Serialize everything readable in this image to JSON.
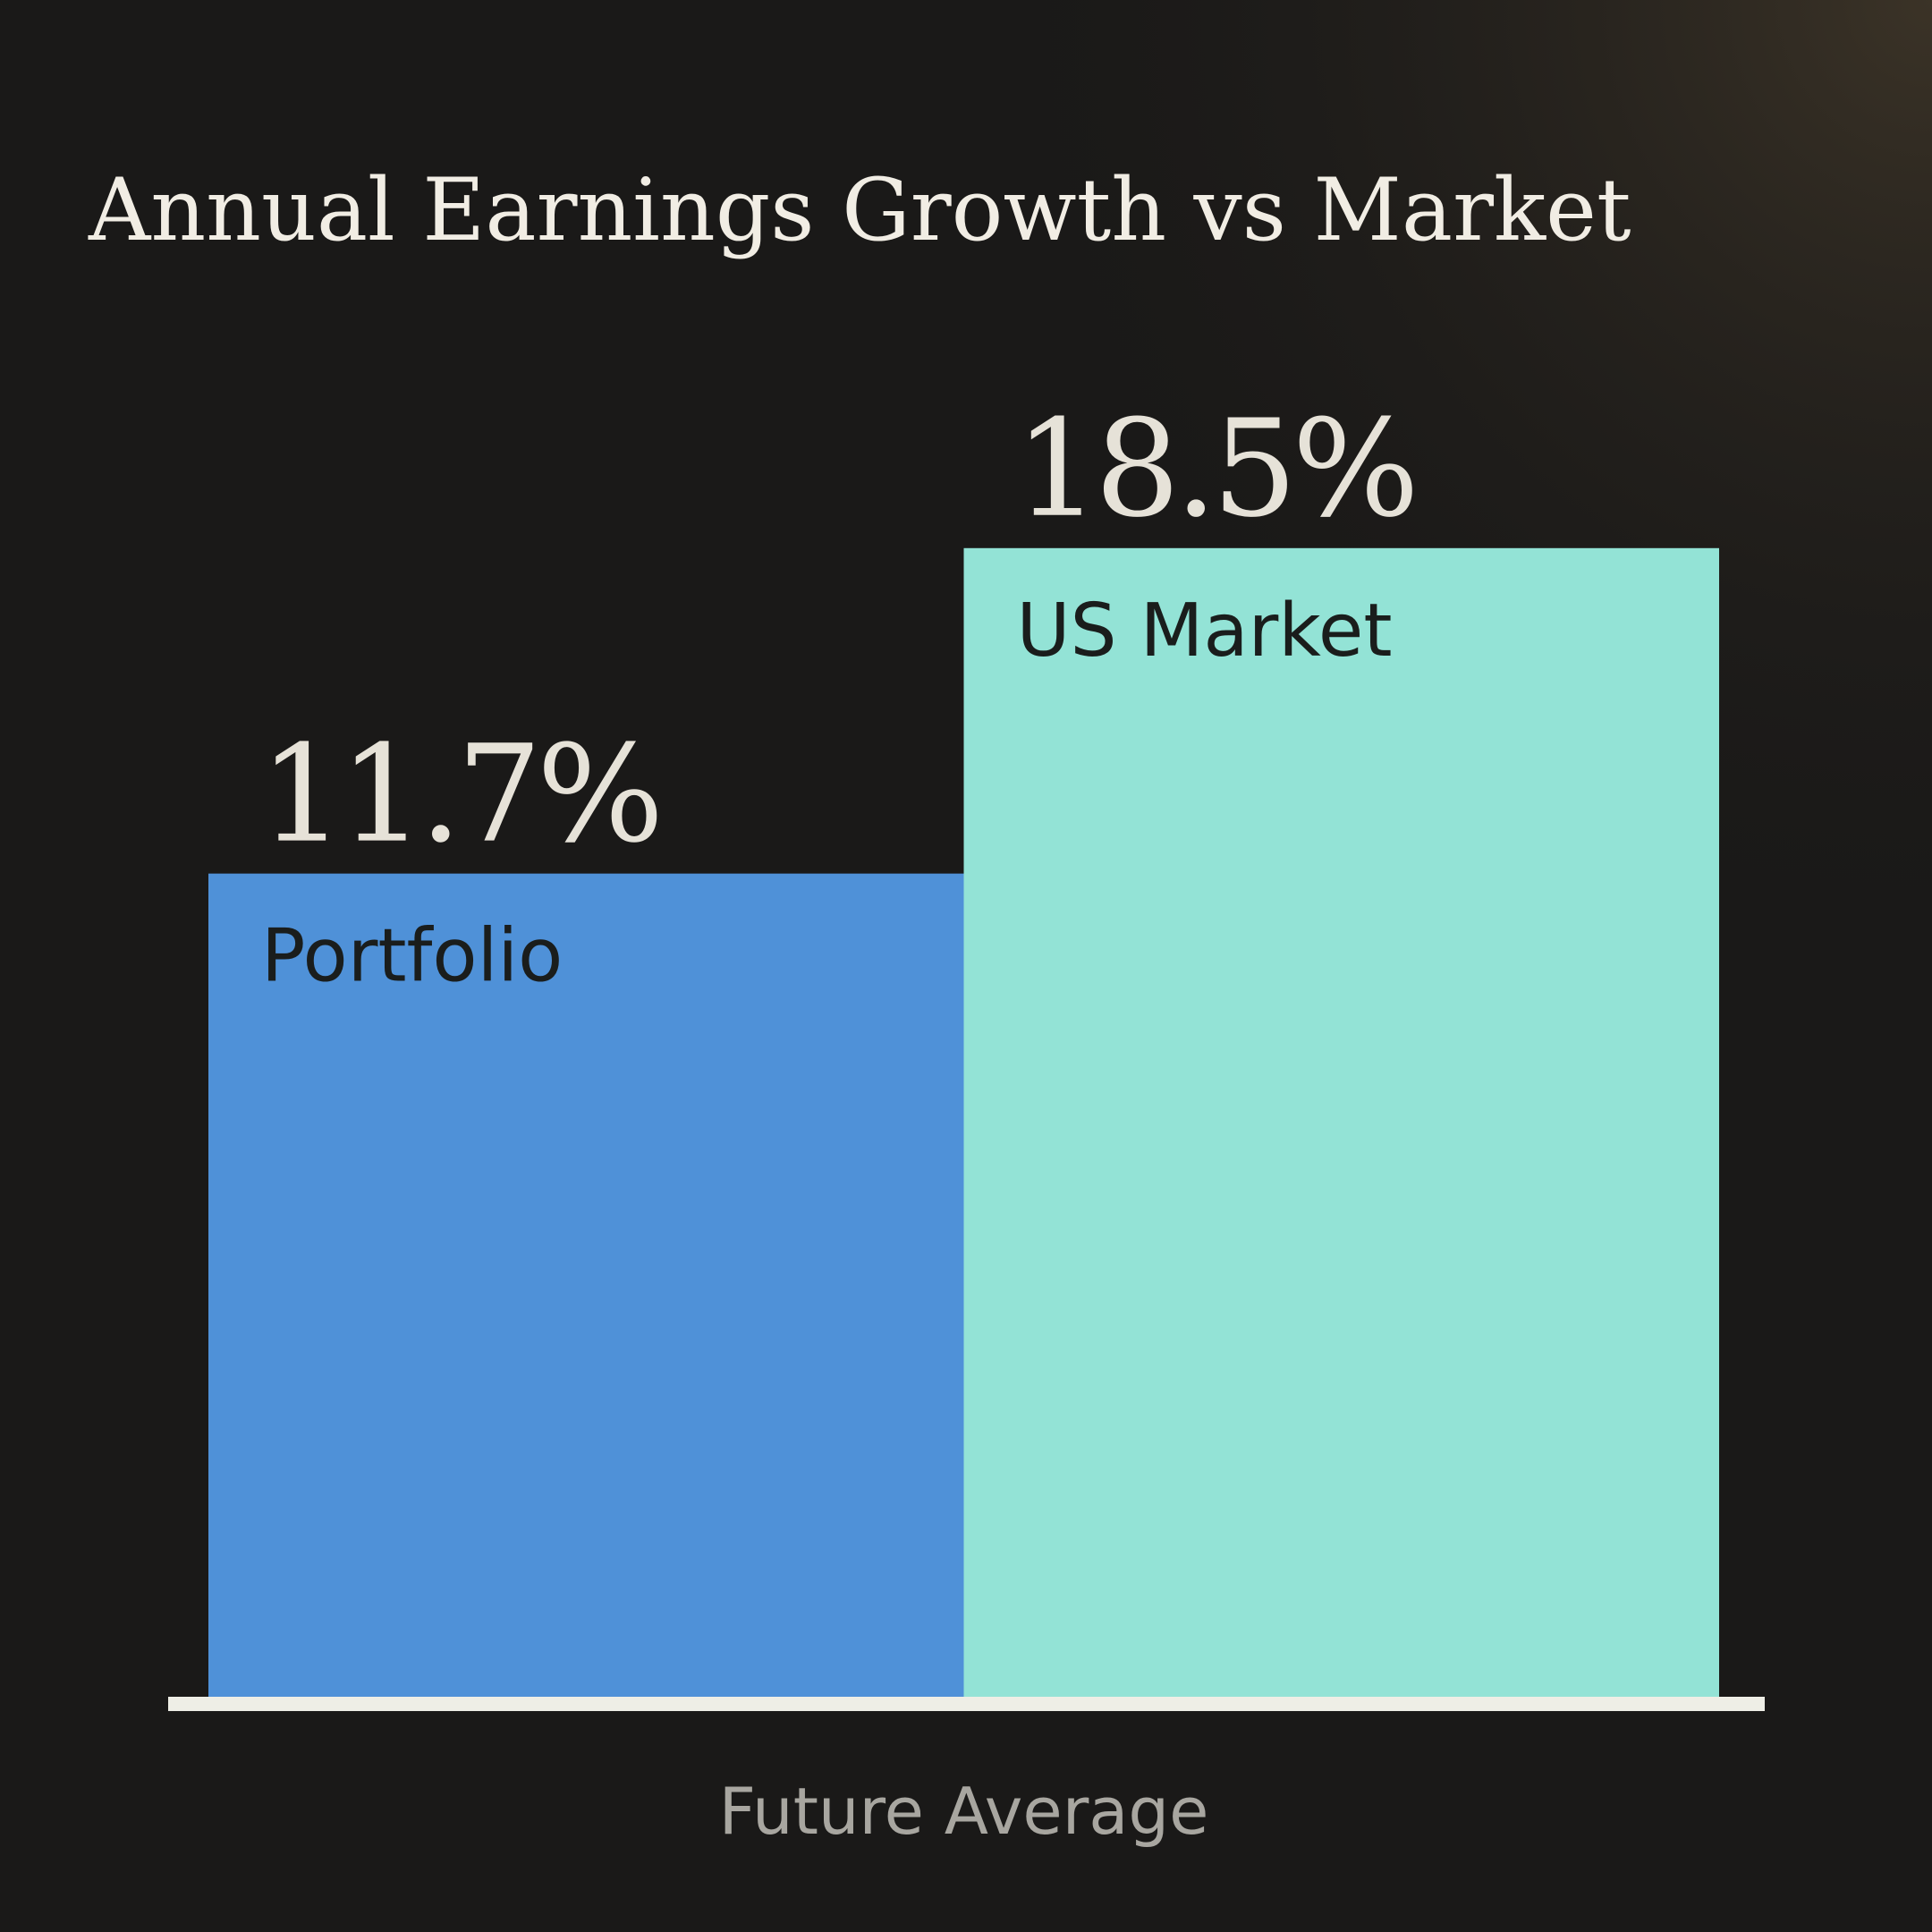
{
  "chart_data": {
    "type": "bar",
    "title": "Annual Earnings Growth vs Market",
    "categories": [
      "Future Average"
    ],
    "series": [
      {
        "name": "Portfolio",
        "color": "#4f91d8",
        "values": [
          11.7
        ],
        "value_labels": [
          "11.7%"
        ]
      },
      {
        "name": "US Market",
        "color": "#93e3d6",
        "values": [
          18.5
        ],
        "value_labels": [
          "18.5%"
        ]
      }
    ],
    "ylim": [
      -5.5,
      25
    ]
  }
}
